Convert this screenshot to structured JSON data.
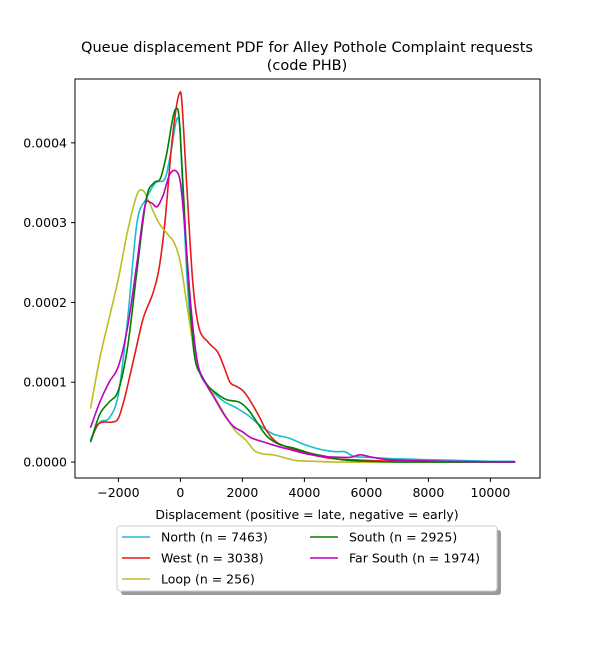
{
  "chart_data": {
    "type": "line",
    "title": "Queue displacement PDF for Alley Pothole Complaint  requests",
    "subtitle": "(code PHB)",
    "xlabel": "Displacement (positive = late, negative = early)",
    "ylabel": "",
    "xlim": [
      -3400,
      11600
    ],
    "ylim": [
      -2e-05,
      0.00048
    ],
    "xticks": [
      {
        "value": -2000,
        "label": "−2000"
      },
      {
        "value": 0,
        "label": "0"
      },
      {
        "value": 2000,
        "label": "2000"
      },
      {
        "value": 4000,
        "label": "4000"
      },
      {
        "value": 6000,
        "label": "6000"
      },
      {
        "value": 8000,
        "label": "8000"
      },
      {
        "value": 10000,
        "label": "10000"
      }
    ],
    "yticks": [
      {
        "value": 0,
        "label": "0.0000"
      },
      {
        "value": 0.0001,
        "label": "0.0001"
      },
      {
        "value": 0.0002,
        "label": "0.0002"
      },
      {
        "value": 0.0003,
        "label": "0.0003"
      },
      {
        "value": 0.0004,
        "label": "0.0004"
      }
    ],
    "grid": false,
    "legend_position": "bottom-center-outside",
    "series": [
      {
        "name": "North (n = 7463)",
        "color": "#17becf",
        "points": [
          [
            -2900,
            2.8e-05
          ],
          [
            -2600,
            5e-05
          ],
          [
            -2300,
            5.5e-05
          ],
          [
            -2000,
            8.5e-05
          ],
          [
            -1700,
            0.00018
          ],
          [
            -1400,
            0.0003
          ],
          [
            -1100,
            0.00033
          ],
          [
            -800,
            0.00035
          ],
          [
            -500,
            0.000355
          ],
          [
            -300,
            0.00039
          ],
          [
            -150,
            0.000425
          ],
          [
            -60,
            0.00043
          ],
          [
            0,
            0.00041
          ],
          [
            100,
            0.00032
          ],
          [
            250,
            0.00021
          ],
          [
            450,
            0.000135
          ],
          [
            700,
            0.000105
          ],
          [
            1000,
            9e-05
          ],
          [
            1400,
            7.6e-05
          ],
          [
            1800,
            6.8e-05
          ],
          [
            2200,
            5.8e-05
          ],
          [
            2600,
            4.5e-05
          ],
          [
            3000,
            3.5e-05
          ],
          [
            3500,
            3e-05
          ],
          [
            4000,
            2.2e-05
          ],
          [
            4500,
            1.6e-05
          ],
          [
            5000,
            1.3e-05
          ],
          [
            5300,
            1.3e-05
          ],
          [
            5600,
            7e-06
          ],
          [
            6000,
            6e-06
          ],
          [
            7000,
            4e-06
          ],
          [
            8000,
            3e-06
          ],
          [
            9000,
            2e-06
          ],
          [
            10000,
            1e-06
          ],
          [
            10800,
            1e-06
          ]
        ]
      },
      {
        "name": "West (n = 3038)",
        "color": "#e41a1c",
        "points": [
          [
            -2900,
            2.5e-05
          ],
          [
            -2700,
            4.5e-05
          ],
          [
            -2500,
            5e-05
          ],
          [
            -2200,
            5e-05
          ],
          [
            -2000,
            5.5e-05
          ],
          [
            -1800,
            8e-05
          ],
          [
            -1500,
            0.00013
          ],
          [
            -1200,
            0.00018
          ],
          [
            -900,
            0.00021
          ],
          [
            -700,
            0.00024
          ],
          [
            -500,
            0.0003
          ],
          [
            -300,
            0.00039
          ],
          [
            -150,
            0.00044
          ],
          [
            -30,
            0.000462
          ],
          [
            50,
            0.00045
          ],
          [
            200,
            0.00035
          ],
          [
            400,
            0.000225
          ],
          [
            600,
            0.000168
          ],
          [
            900,
            0.00015
          ],
          [
            1200,
            0.000138
          ],
          [
            1400,
            0.00012
          ],
          [
            1600,
            0.0001
          ],
          [
            1800,
            9.5e-05
          ],
          [
            2000,
            9e-05
          ],
          [
            2200,
            8e-05
          ],
          [
            2500,
            6e-05
          ],
          [
            2800,
            3.8e-05
          ],
          [
            3100,
            2.5e-05
          ],
          [
            3500,
            1.8e-05
          ],
          [
            4000,
            1.2e-05
          ],
          [
            4500,
            7e-06
          ],
          [
            5000,
            4e-06
          ],
          [
            6000,
            2e-06
          ],
          [
            7000,
            1e-06
          ],
          [
            8000,
            5e-07
          ],
          [
            9000,
            0
          ],
          [
            10000,
            0
          ],
          [
            10800,
            0
          ]
        ]
      },
      {
        "name": "Loop (n = 256)",
        "color": "#bcbd22",
        "points": [
          [
            -2900,
            6.7e-05
          ],
          [
            -2600,
            0.00013
          ],
          [
            -2300,
            0.00018
          ],
          [
            -2000,
            0.00023
          ],
          [
            -1700,
            0.00029
          ],
          [
            -1400,
            0.000335
          ],
          [
            -1200,
            0.00034
          ],
          [
            -1000,
            0.000325
          ],
          [
            -700,
            0.0003
          ],
          [
            -400,
            0.000285
          ],
          [
            -200,
            0.000275
          ],
          [
            0,
            0.00025
          ],
          [
            200,
            0.0002
          ],
          [
            400,
            0.00015
          ],
          [
            600,
            0.000115
          ],
          [
            900,
            9.5e-05
          ],
          [
            1200,
            7.5e-05
          ],
          [
            1500,
            5.5e-05
          ],
          [
            1800,
            3.8e-05
          ],
          [
            2100,
            2.8e-05
          ],
          [
            2400,
            1.4e-05
          ],
          [
            2700,
            1e-05
          ],
          [
            3000,
            9e-06
          ],
          [
            3300,
            6e-06
          ],
          [
            3700,
            2e-06
          ],
          [
            4200,
            1e-06
          ],
          [
            5000,
            0
          ],
          [
            6000,
            0
          ],
          [
            8000,
            0
          ],
          [
            10800,
            0
          ]
        ]
      },
      {
        "name": "South (n = 2925)",
        "color": "#008000",
        "points": [
          [
            -2900,
            2.5e-05
          ],
          [
            -2600,
            6e-05
          ],
          [
            -2300,
            7.5e-05
          ],
          [
            -2000,
            9e-05
          ],
          [
            -1700,
            0.000145
          ],
          [
            -1400,
            0.00024
          ],
          [
            -1100,
            0.00033
          ],
          [
            -850,
            0.00035
          ],
          [
            -650,
            0.000355
          ],
          [
            -450,
            0.000385
          ],
          [
            -250,
            0.00043
          ],
          [
            -130,
            0.000443
          ],
          [
            -40,
            0.00043
          ],
          [
            80,
            0.00035
          ],
          [
            250,
            0.00023
          ],
          [
            450,
            0.000135
          ],
          [
            650,
            0.00011
          ],
          [
            900,
            9.5e-05
          ],
          [
            1200,
            8.5e-05
          ],
          [
            1500,
            7.8e-05
          ],
          [
            1900,
            7.5e-05
          ],
          [
            2200,
            6.5e-05
          ],
          [
            2500,
            4.8e-05
          ],
          [
            2800,
            3.2e-05
          ],
          [
            3200,
            2.2e-05
          ],
          [
            3700,
            1.7e-05
          ],
          [
            4200,
            1.1e-05
          ],
          [
            4700,
            7e-06
          ],
          [
            5200,
            3e-06
          ],
          [
            6000,
            1e-06
          ],
          [
            7000,
            0
          ],
          [
            8000,
            0
          ],
          [
            10800,
            0
          ]
        ]
      },
      {
        "name": "Far South (n = 1974)",
        "color": "#bf00bf",
        "points": [
          [
            -2900,
            4.3e-05
          ],
          [
            -2600,
            7.5e-05
          ],
          [
            -2300,
            0.0001
          ],
          [
            -2000,
            0.00012
          ],
          [
            -1700,
            0.00017
          ],
          [
            -1400,
            0.00025
          ],
          [
            -1150,
            0.00032
          ],
          [
            -950,
            0.000325
          ],
          [
            -750,
            0.00032
          ],
          [
            -550,
            0.000335
          ],
          [
            -350,
            0.00036
          ],
          [
            -150,
            0.000365
          ],
          [
            0,
            0.00035
          ],
          [
            150,
            0.00029
          ],
          [
            350,
            0.00019
          ],
          [
            550,
            0.000125
          ],
          [
            800,
            0.0001
          ],
          [
            1100,
            8e-05
          ],
          [
            1400,
            6e-05
          ],
          [
            1700,
            4.5e-05
          ],
          [
            2000,
            3.8e-05
          ],
          [
            2300,
            3e-05
          ],
          [
            2700,
            2.5e-05
          ],
          [
            3100,
            2e-05
          ],
          [
            3600,
            1.5e-05
          ],
          [
            4100,
            1e-05
          ],
          [
            4600,
            7e-06
          ],
          [
            5100,
            6e-06
          ],
          [
            5500,
            6e-06
          ],
          [
            5800,
            9e-06
          ],
          [
            6200,
            6e-06
          ],
          [
            6700,
            3e-06
          ],
          [
            7500,
            2e-06
          ],
          [
            8500,
            1e-06
          ],
          [
            9500,
            5e-07
          ],
          [
            10800,
            0
          ]
        ]
      }
    ]
  }
}
